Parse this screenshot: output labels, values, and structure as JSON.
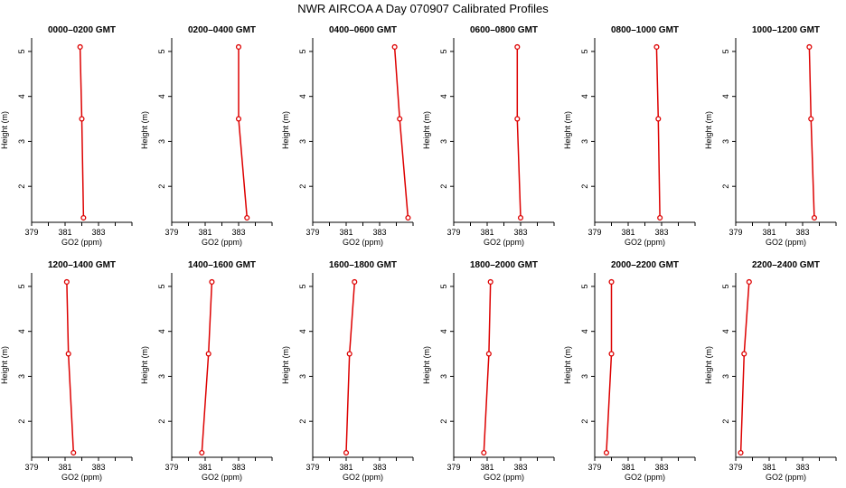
{
  "title": "NWR AIRCOA A  Day 070907  Calibrated Profiles",
  "colors": {
    "series": "#dd0000",
    "axis": "#000000"
  },
  "chart_data": [
    {
      "type": "line",
      "title": "0000–0200 GMT",
      "xlabel": "GO2 (ppm)",
      "ylabel": "Height (m)",
      "xlim": [
        379,
        385
      ],
      "ylim": [
        1.2,
        5.3
      ],
      "xticks": [
        "379",
        "381",
        "383"
      ],
      "yticks": [
        "2",
        "3",
        "4",
        "5"
      ],
      "x": [
        381.9,
        382.0,
        382.1
      ],
      "y": [
        5.1,
        3.5,
        1.3
      ]
    },
    {
      "type": "line",
      "title": "0200–0400 GMT",
      "xlabel": "GO2 (ppm)",
      "ylabel": "Height (m)",
      "xlim": [
        379,
        385
      ],
      "ylim": [
        1.2,
        5.3
      ],
      "xticks": [
        "379",
        "381",
        "383"
      ],
      "yticks": [
        "2",
        "3",
        "4",
        "5"
      ],
      "x": [
        383.0,
        383.0,
        383.5
      ],
      "y": [
        5.1,
        3.5,
        1.3
      ]
    },
    {
      "type": "line",
      "title": "0400–0600 GMT",
      "xlabel": "GO2 (ppm)",
      "ylabel": "Height (m)",
      "xlim": [
        379,
        385
      ],
      "ylim": [
        1.2,
        5.3
      ],
      "xticks": [
        "379",
        "381",
        "383"
      ],
      "yticks": [
        "2",
        "3",
        "4",
        "5"
      ],
      "x": [
        383.9,
        384.2,
        384.7
      ],
      "y": [
        5.1,
        3.5,
        1.3
      ]
    },
    {
      "type": "line",
      "title": "0600–0800 GMT",
      "xlabel": "GO2 (ppm)",
      "ylabel": "Height (m)",
      "xlim": [
        379,
        385
      ],
      "ylim": [
        1.2,
        5.3
      ],
      "xticks": [
        "379",
        "381",
        "383"
      ],
      "yticks": [
        "2",
        "3",
        "4",
        "5"
      ],
      "x": [
        382.8,
        382.8,
        383.0
      ],
      "y": [
        5.1,
        3.5,
        1.3
      ]
    },
    {
      "type": "line",
      "title": "0800–1000 GMT",
      "xlabel": "GO2 (ppm)",
      "ylabel": "Height (m)",
      "xlim": [
        379,
        385
      ],
      "ylim": [
        1.2,
        5.3
      ],
      "xticks": [
        "379",
        "381",
        "383"
      ],
      "yticks": [
        "2",
        "3",
        "4",
        "5"
      ],
      "x": [
        382.7,
        382.8,
        382.9
      ],
      "y": [
        5.1,
        3.5,
        1.3
      ]
    },
    {
      "type": "line",
      "title": "1000–1200 GMT",
      "xlabel": "GO2 (ppm)",
      "ylabel": "Height (m)",
      "xlim": [
        379,
        385
      ],
      "ylim": [
        1.2,
        5.3
      ],
      "xticks": [
        "379",
        "381",
        "383"
      ],
      "yticks": [
        "2",
        "3",
        "4",
        "5"
      ],
      "x": [
        383.4,
        383.5,
        383.7
      ],
      "y": [
        5.1,
        3.5,
        1.3
      ]
    },
    {
      "type": "line",
      "title": "1200–1400 GMT",
      "xlabel": "GO2 (ppm)",
      "ylabel": "Height (m)",
      "xlim": [
        379,
        385
      ],
      "ylim": [
        1.2,
        5.3
      ],
      "xticks": [
        "379",
        "381",
        "383"
      ],
      "yticks": [
        "2",
        "3",
        "4",
        "5"
      ],
      "x": [
        381.1,
        381.2,
        381.5
      ],
      "y": [
        5.1,
        3.5,
        1.3
      ]
    },
    {
      "type": "line",
      "title": "1400–1600 GMT",
      "xlabel": "GO2 (ppm)",
      "ylabel": "Height (m)",
      "xlim": [
        379,
        385
      ],
      "ylim": [
        1.2,
        5.3
      ],
      "xticks": [
        "379",
        "381",
        "383"
      ],
      "yticks": [
        "2",
        "3",
        "4",
        "5"
      ],
      "x": [
        381.4,
        381.2,
        380.8
      ],
      "y": [
        5.1,
        3.5,
        1.3
      ]
    },
    {
      "type": "line",
      "title": "1600–1800 GMT",
      "xlabel": "GO2 (ppm)",
      "ylabel": "Height (m)",
      "xlim": [
        379,
        385
      ],
      "ylim": [
        1.2,
        5.3
      ],
      "xticks": [
        "379",
        "381",
        "383"
      ],
      "yticks": [
        "2",
        "3",
        "4",
        "5"
      ],
      "x": [
        381.5,
        381.2,
        381.0
      ],
      "y": [
        5.1,
        3.5,
        1.3
      ]
    },
    {
      "type": "line",
      "title": "1800–2000 GMT",
      "xlabel": "GO2 (ppm)",
      "ylabel": "Height (m)",
      "xlim": [
        379,
        385
      ],
      "ylim": [
        1.2,
        5.3
      ],
      "xticks": [
        "379",
        "381",
        "383"
      ],
      "yticks": [
        "2",
        "3",
        "4",
        "5"
      ],
      "x": [
        381.2,
        381.1,
        380.8
      ],
      "y": [
        5.1,
        3.5,
        1.3
      ]
    },
    {
      "type": "line",
      "title": "2000–2200 GMT",
      "xlabel": "GO2 (ppm)",
      "ylabel": "Height (m)",
      "xlim": [
        379,
        385
      ],
      "ylim": [
        1.2,
        5.3
      ],
      "xticks": [
        "379",
        "381",
        "383"
      ],
      "yticks": [
        "2",
        "3",
        "4",
        "5"
      ],
      "x": [
        380.0,
        380.0,
        379.7
      ],
      "y": [
        5.1,
        3.5,
        1.3
      ]
    },
    {
      "type": "line",
      "title": "2200–2400 GMT",
      "xlabel": "GO2 (ppm)",
      "ylabel": "Height (m)",
      "xlim": [
        379,
        385
      ],
      "ylim": [
        1.2,
        5.3
      ],
      "xticks": [
        "379",
        "381",
        "383"
      ],
      "yticks": [
        "2",
        "3",
        "4",
        "5"
      ],
      "x": [
        379.8,
        379.5,
        379.3
      ],
      "y": [
        5.1,
        3.5,
        1.3
      ]
    }
  ]
}
